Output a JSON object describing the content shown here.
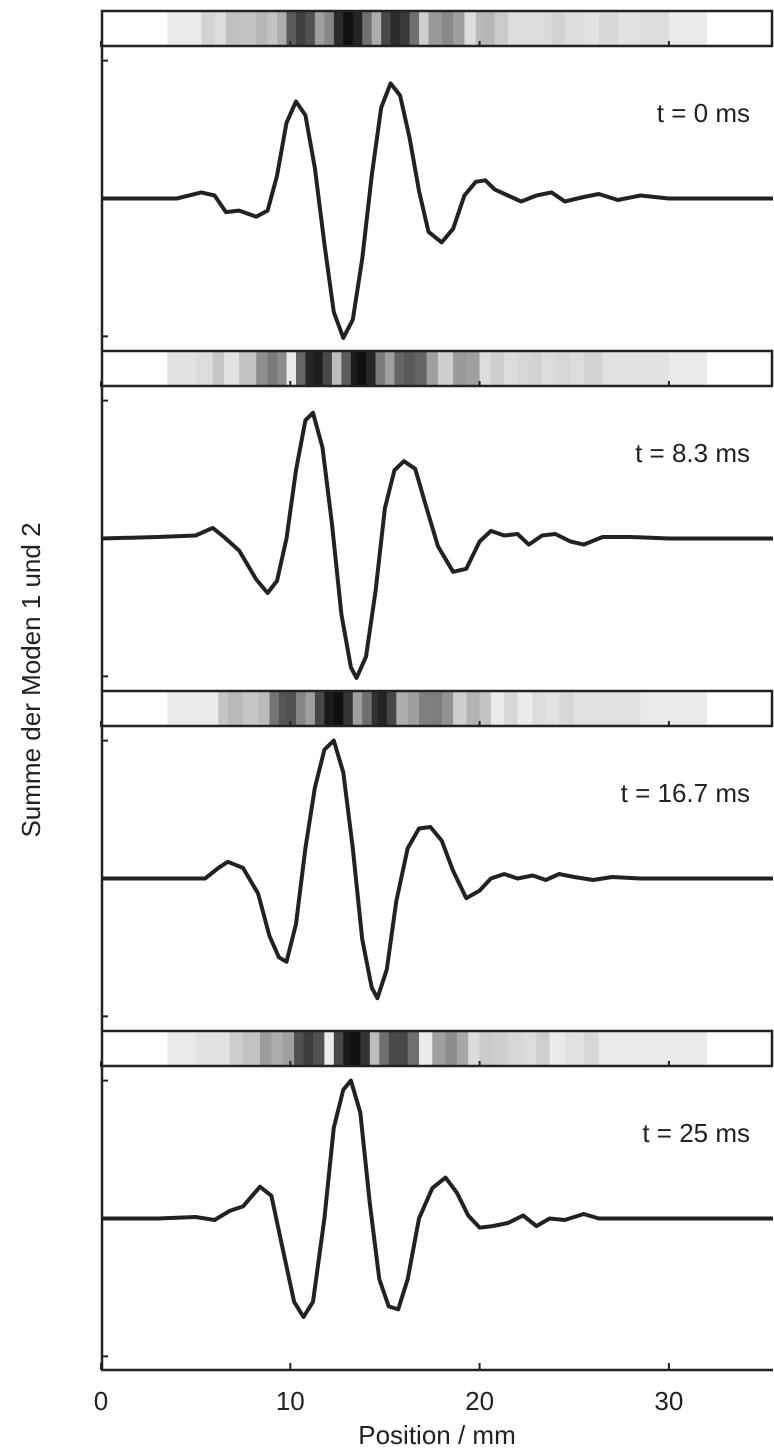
{
  "chart_data": [
    {
      "type": "line",
      "annotation": "t = 0 ms",
      "ylabel": "Summe der Moden 1 und 2",
      "xlim": [
        0,
        35.5
      ],
      "ylim": [
        -1,
        1
      ],
      "yticks": [
        -0.91,
        0.91
      ],
      "color": "#222222",
      "x": [
        0,
        4,
        5.3,
        6,
        6.6,
        7.3,
        8.2,
        8.8,
        9.3,
        9.8,
        10.3,
        10.8,
        11.3,
        11.8,
        12.3,
        12.8,
        13.3,
        13.8,
        14.3,
        14.8,
        15.3,
        15.8,
        16.3,
        16.8,
        17.3,
        18,
        18.6,
        19.2,
        19.8,
        20.3,
        20.8,
        21.5,
        22.2,
        23,
        23.8,
        24.5,
        25.5,
        26.3,
        27.3,
        28.5,
        30,
        35.5
      ],
      "values": [
        0,
        0,
        0.04,
        0.02,
        -0.09,
        -0.08,
        -0.12,
        -0.08,
        0.15,
        0.5,
        0.64,
        0.55,
        0.2,
        -0.3,
        -0.75,
        -0.92,
        -0.8,
        -0.4,
        0.15,
        0.6,
        0.76,
        0.68,
        0.4,
        0.05,
        -0.22,
        -0.29,
        -0.2,
        0.02,
        0.11,
        0.12,
        0.06,
        0.02,
        -0.02,
        0.02,
        0.04,
        -0.02,
        0.01,
        0.03,
        -0.01,
        0.02,
        0,
        0
      ]
    },
    {
      "type": "line",
      "annotation": "t = 8.3 ms",
      "xlim": [
        0,
        35.5
      ],
      "ylim": [
        -1,
        1
      ],
      "yticks": [
        -0.91,
        0.91
      ],
      "color": "#222222",
      "x": [
        0,
        3,
        5,
        5.9,
        6.5,
        7.3,
        8.2,
        8.8,
        9.3,
        9.8,
        10.3,
        10.8,
        11.2,
        11.7,
        12.2,
        12.7,
        13.2,
        13.5,
        14,
        14.5,
        15,
        15.5,
        16,
        16.6,
        17.2,
        17.8,
        18.6,
        19.3,
        20,
        20.6,
        21.3,
        22,
        22.6,
        23.3,
        24,
        24.8,
        25.5,
        26.5,
        28,
        30,
        35.5
      ],
      "values": [
        0,
        0.01,
        0.02,
        0.07,
        0.01,
        -0.08,
        -0.27,
        -0.36,
        -0.28,
        0,
        0.45,
        0.78,
        0.83,
        0.6,
        0.1,
        -0.5,
        -0.85,
        -0.92,
        -0.78,
        -0.35,
        0.2,
        0.45,
        0.51,
        0.46,
        0.2,
        -0.05,
        -0.22,
        -0.2,
        -0.02,
        0.05,
        0.02,
        0.03,
        -0.04,
        0.02,
        0.03,
        -0.02,
        -0.04,
        0.01,
        0.01,
        0,
        0
      ]
    },
    {
      "type": "line",
      "annotation": "t = 16.7 ms",
      "xlim": [
        0,
        35.5
      ],
      "ylim": [
        -1,
        1
      ],
      "yticks": [
        -0.91,
        0.91
      ],
      "color": "#222222",
      "x": [
        0,
        4,
        5.5,
        6.2,
        6.7,
        7.5,
        8.3,
        8.9,
        9.4,
        9.8,
        10.3,
        10.8,
        11.3,
        11.8,
        12.3,
        12.8,
        13.3,
        13.8,
        14.3,
        14.6,
        15.1,
        15.6,
        16.2,
        16.8,
        17.4,
        18,
        18.6,
        19.3,
        20,
        20.6,
        21.3,
        22,
        22.8,
        23.5,
        24.2,
        25,
        26,
        27,
        28.5,
        35.5
      ],
      "values": [
        0,
        0,
        0,
        0.07,
        0.11,
        0.07,
        -0.1,
        -0.38,
        -0.52,
        -0.55,
        -0.3,
        0.2,
        0.6,
        0.85,
        0.91,
        0.7,
        0.2,
        -0.4,
        -0.72,
        -0.79,
        -0.6,
        -0.15,
        0.2,
        0.33,
        0.34,
        0.25,
        0.05,
        -0.13,
        -0.08,
        0,
        0.03,
        0,
        0.02,
        -0.01,
        0.03,
        0.01,
        -0.01,
        0.01,
        0,
        0
      ]
    },
    {
      "type": "line",
      "annotation": "t = 25 ms",
      "xlabel": "Position  / mm",
      "xlim": [
        0,
        35.5
      ],
      "ylim": [
        -1,
        1
      ],
      "yticks": [
        -0.91,
        0.91
      ],
      "xticks": [
        0,
        10,
        20,
        30
      ],
      "color": "#222222",
      "x": [
        0,
        3,
        5,
        6,
        6.8,
        7.5,
        8.4,
        9,
        9.6,
        10.2,
        10.7,
        11.2,
        11.8,
        12.3,
        12.8,
        13.2,
        13.7,
        14.2,
        14.7,
        15.2,
        15.7,
        16.2,
        16.8,
        17.5,
        18.2,
        18.8,
        19.4,
        20,
        20.7,
        21.5,
        22.3,
        23,
        23.7,
        24.5,
        25.5,
        26.3,
        27.5,
        30,
        35.5
      ],
      "values": [
        0,
        0,
        0.01,
        -0.01,
        0.05,
        0.08,
        0.21,
        0.15,
        -0.2,
        -0.55,
        -0.65,
        -0.55,
        0,
        0.6,
        0.85,
        0.91,
        0.7,
        0.1,
        -0.4,
        -0.58,
        -0.6,
        -0.4,
        0,
        0.2,
        0.27,
        0.17,
        0.02,
        -0.06,
        -0.05,
        -0.03,
        0.02,
        -0.05,
        0,
        -0.01,
        0.03,
        0,
        0,
        0,
        0
      ]
    }
  ]
}
